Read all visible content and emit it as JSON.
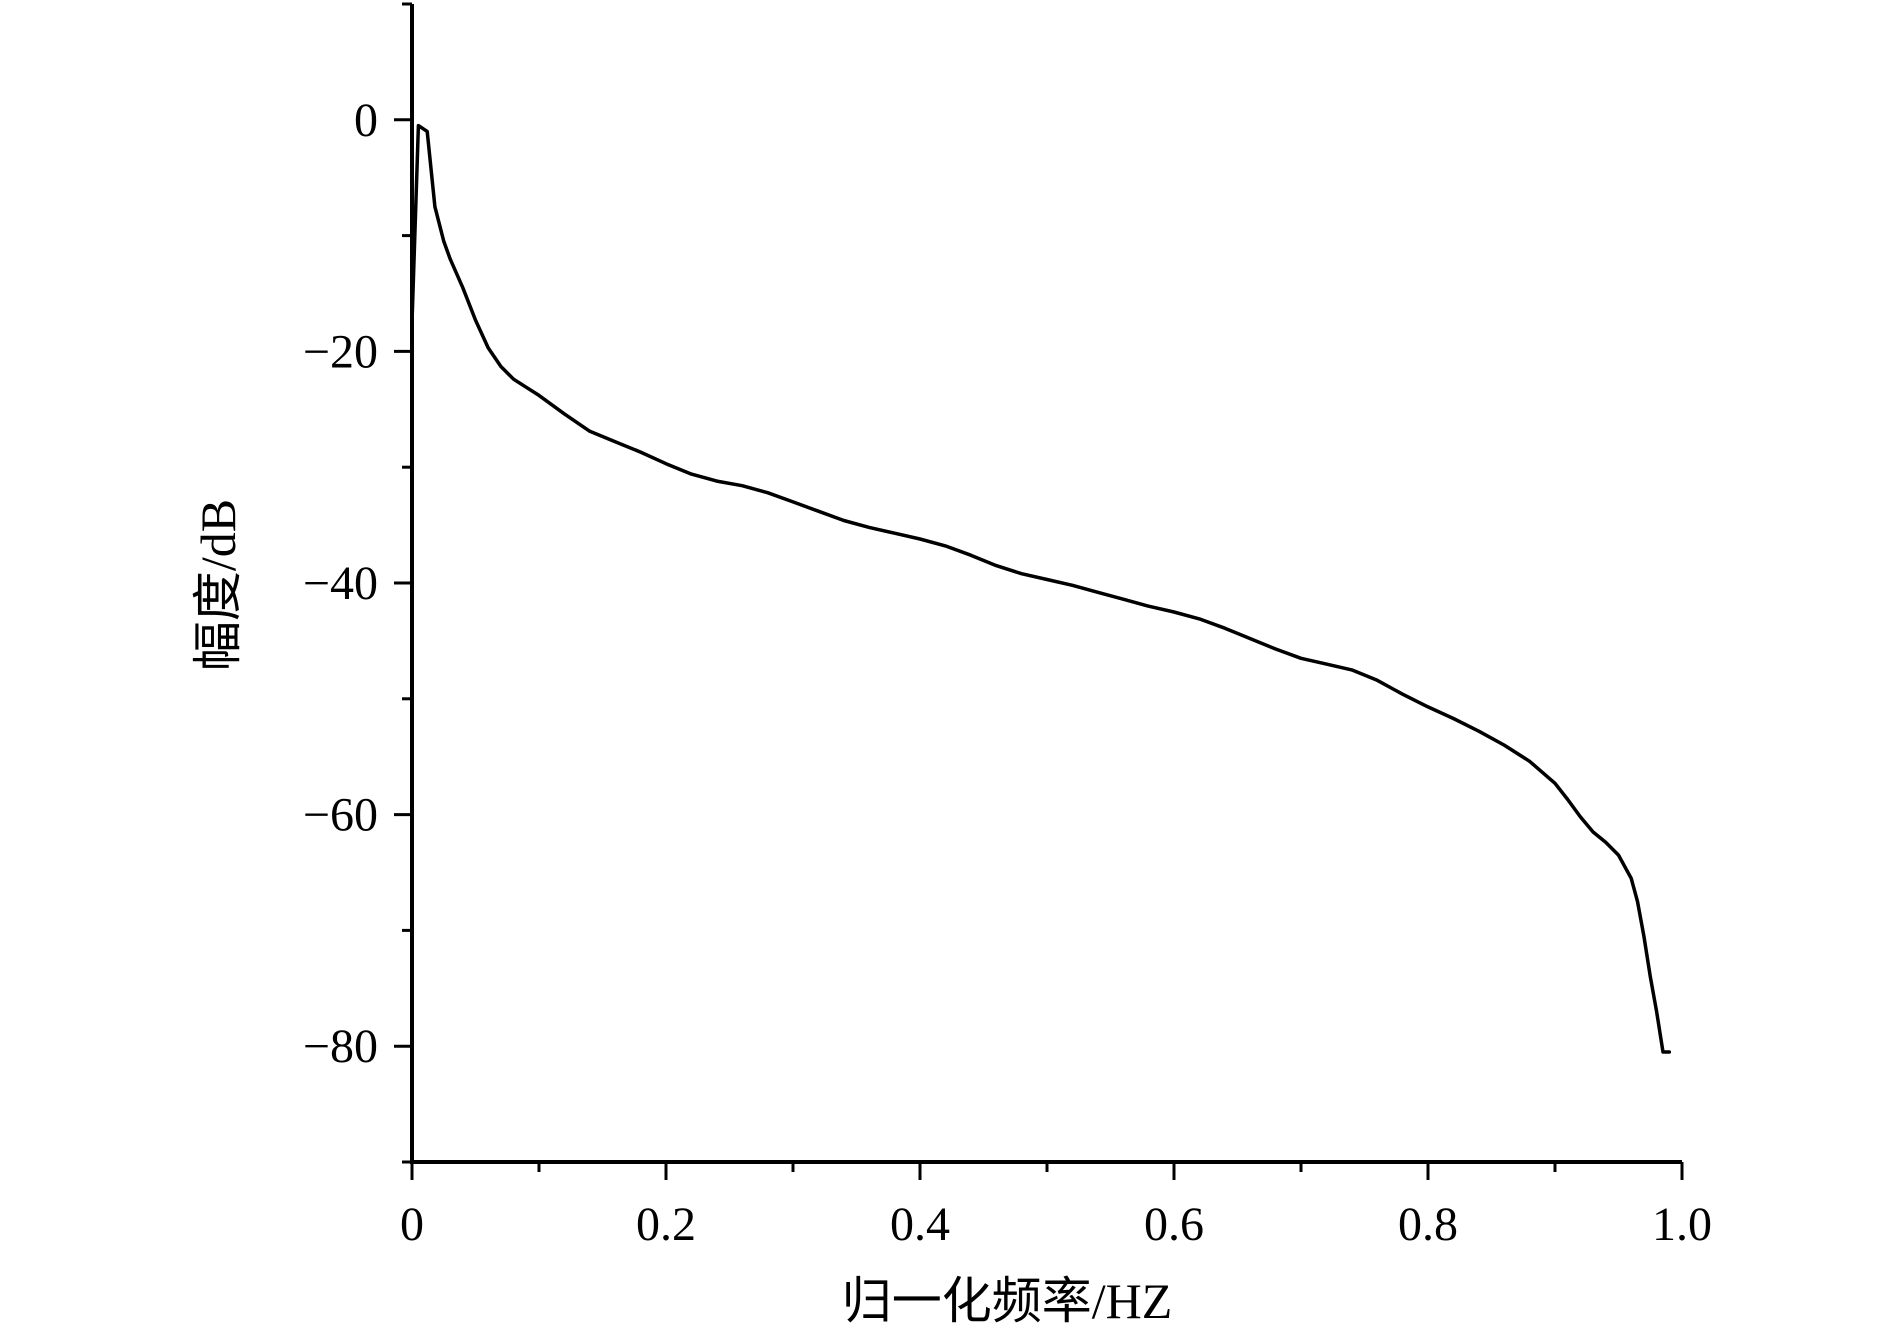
{
  "chart_data": {
    "type": "line",
    "xlabel": "归一化频率/HZ",
    "ylabel": "幅度/dB",
    "xlim": [
      0,
      1.0
    ],
    "ylim": [
      -90,
      10
    ],
    "x_ticks": [
      0,
      0.2,
      0.4,
      0.6,
      0.8,
      1.0
    ],
    "x_tick_labels": [
      "0",
      "0.2",
      "0.4",
      "0.6",
      "0.8",
      "1.0"
    ],
    "x_minor_step": 0.1,
    "y_ticks": [
      0,
      -20,
      -40,
      -60,
      -80
    ],
    "y_tick_labels": [
      "0",
      "−20",
      "−40",
      "−60",
      "−80"
    ],
    "y_minor_step": 10,
    "grid": false,
    "line_color": "#000000",
    "series": [
      {
        "x": [
          0.0,
          0.005,
          0.012,
          0.018,
          0.025,
          0.03,
          0.04,
          0.05,
          0.06,
          0.07,
          0.08,
          0.09,
          0.1,
          0.12,
          0.14,
          0.16,
          0.18,
          0.2,
          0.22,
          0.24,
          0.26,
          0.28,
          0.3,
          0.32,
          0.34,
          0.36,
          0.38,
          0.4,
          0.42,
          0.44,
          0.46,
          0.48,
          0.5,
          0.52,
          0.54,
          0.56,
          0.58,
          0.6,
          0.62,
          0.64,
          0.66,
          0.68,
          0.7,
          0.72,
          0.74,
          0.76,
          0.78,
          0.8,
          0.82,
          0.84,
          0.86,
          0.88,
          0.9,
          0.91,
          0.92,
          0.93,
          0.94,
          0.95,
          0.96,
          0.965,
          0.97,
          0.975,
          0.98,
          0.985,
          0.99
        ],
        "y": [
          -17.5,
          -0.5,
          -1.0,
          -7.5,
          -10.5,
          -12.0,
          -14.5,
          -17.3,
          -19.7,
          -21.3,
          -22.4,
          -23.1,
          -23.8,
          -25.4,
          -26.9,
          -27.8,
          -28.7,
          -29.7,
          -30.6,
          -31.2,
          -31.6,
          -32.2,
          -33.0,
          -33.8,
          -34.6,
          -35.2,
          -35.7,
          -36.2,
          -36.8,
          -37.6,
          -38.5,
          -39.2,
          -39.7,
          -40.2,
          -40.8,
          -41.4,
          -42.0,
          -42.5,
          -43.1,
          -43.9,
          -44.8,
          -45.7,
          -46.5,
          -47.0,
          -47.5,
          -48.4,
          -49.6,
          -50.7,
          -51.7,
          -52.8,
          -54.0,
          -55.4,
          -57.3,
          -58.7,
          -60.2,
          -61.5,
          -62.4,
          -63.5,
          -65.5,
          -67.5,
          -70.5,
          -74.0,
          -77.0,
          -80.5,
          -80.5
        ]
      }
    ]
  }
}
